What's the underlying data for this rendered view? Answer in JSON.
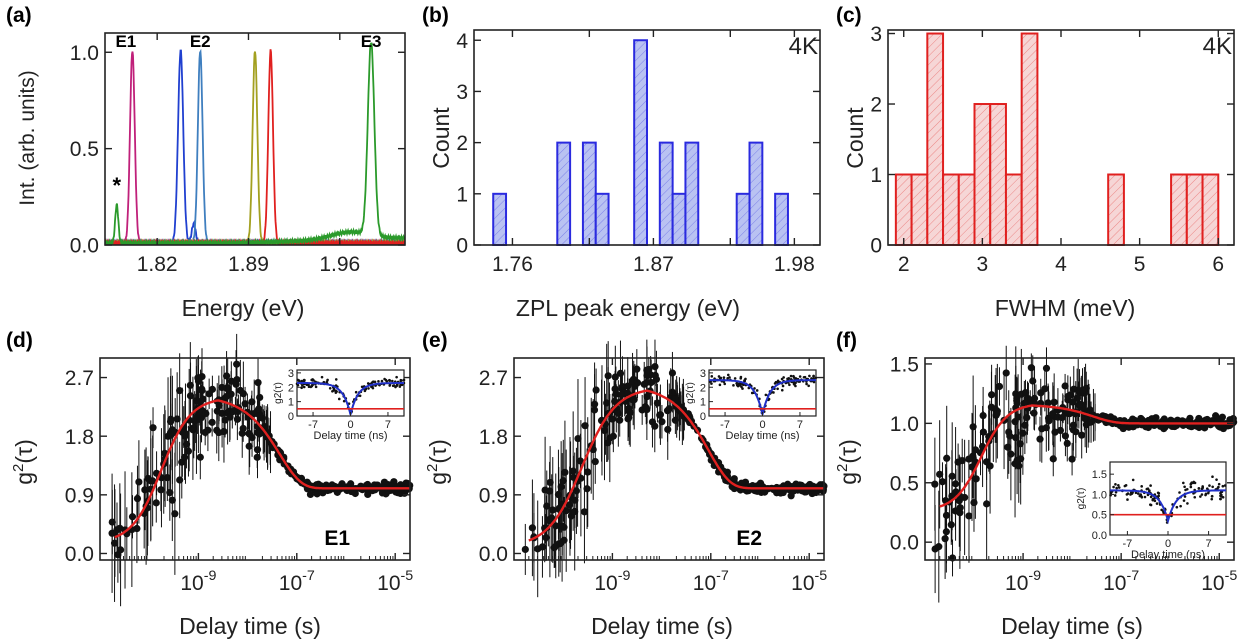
{
  "colors": {
    "axis": "#222222",
    "blue_hist_edge": "#2a2adf",
    "blue_hist_fill": "#b9c2f2",
    "red_hist_edge": "#e0201f",
    "red_hist_fill": "#f6d6d6",
    "fit_red": "#e0201f",
    "fit_blue": "#2030c8",
    "data_black": "#111111"
  },
  "chart_data": [
    {
      "panel": "(a)",
      "type": "line",
      "xlabel": "Energy (eV)",
      "ylabel": "Int. (arb. units)",
      "xlim": [
        1.78,
        2.01
      ],
      "ylim": [
        0,
        1.1
      ],
      "xticks": [
        1.82,
        1.89,
        1.96
      ],
      "xtick_labels": [
        "1.82",
        "1.89",
        "1.96"
      ],
      "yticks": [
        0.0,
        0.5,
        1.0
      ],
      "ytick_labels": [
        "0.0",
        "0.5",
        "1.0"
      ],
      "annotations": [
        "E1",
        "E2",
        "E3",
        "*"
      ],
      "series": [
        {
          "color": "#c0207a",
          "peak_x": 1.801,
          "width": 0.0018,
          "height": 1.0
        },
        {
          "color": "#2040d0",
          "peak_x": 1.838,
          "width": 0.002,
          "height": 1.0,
          "side_x": 1.848,
          "side_h": 0.1
        },
        {
          "color": "#3f7fbf",
          "peak_x": 1.853,
          "width": 0.0018,
          "height": 1.0
        },
        {
          "color": "#a3a020",
          "peak_x": 1.895,
          "width": 0.0018,
          "height": 1.0
        },
        {
          "color": "#e0201f",
          "peak_x": 1.907,
          "width": 0.0018,
          "height": 1.0
        },
        {
          "color": "#2b9a2b",
          "peak_x": 1.984,
          "width": 0.0025,
          "height": 1.0,
          "extra_x": 1.789,
          "extra_h": 0.2
        }
      ]
    },
    {
      "panel": "(b)",
      "type": "bar",
      "xlabel": "ZPL peak energy (eV)",
      "ylabel": "Count",
      "annotation": "4K",
      "xlim": [
        1.73,
        2.0
      ],
      "ylim": [
        0,
        4.2
      ],
      "xticks": [
        1.76,
        1.82,
        1.87,
        1.93,
        1.98
      ],
      "xtick_labels": [
        "1.76",
        "",
        "1.87",
        "",
        "1.98"
      ],
      "yticks": [
        0,
        1,
        2,
        3,
        4
      ],
      "ytick_labels": [
        "0",
        "1",
        "2",
        "3",
        "4"
      ],
      "bins": [
        {
          "x0": 1.745,
          "x1": 1.755,
          "count": 1
        },
        {
          "x0": 1.795,
          "x1": 1.805,
          "count": 2
        },
        {
          "x0": 1.815,
          "x1": 1.825,
          "count": 2
        },
        {
          "x0": 1.825,
          "x1": 1.835,
          "count": 1
        },
        {
          "x0": 1.855,
          "x1": 1.865,
          "count": 4
        },
        {
          "x0": 1.875,
          "x1": 1.885,
          "count": 2
        },
        {
          "x0": 1.885,
          "x1": 1.895,
          "count": 1
        },
        {
          "x0": 1.895,
          "x1": 1.905,
          "count": 2
        },
        {
          "x0": 1.935,
          "x1": 1.945,
          "count": 1
        },
        {
          "x0": 1.945,
          "x1": 1.955,
          "count": 2
        },
        {
          "x0": 1.965,
          "x1": 1.975,
          "count": 1
        }
      ]
    },
    {
      "panel": "(c)",
      "type": "bar",
      "xlabel": "FWHM  (meV)",
      "ylabel": "Count",
      "annotation": "4K",
      "xlim": [
        1.8,
        6.2
      ],
      "ylim": [
        0,
        3.05
      ],
      "xticks": [
        2,
        3,
        4,
        5,
        6
      ],
      "xtick_labels": [
        "2",
        "3",
        "4",
        "5",
        "6"
      ],
      "yticks": [
        0,
        1,
        2,
        3
      ],
      "ytick_labels": [
        "0",
        "1",
        "2",
        "3"
      ],
      "bins": [
        {
          "x0": 1.9,
          "x1": 2.1,
          "count": 1
        },
        {
          "x0": 2.1,
          "x1": 2.3,
          "count": 1
        },
        {
          "x0": 2.3,
          "x1": 2.5,
          "count": 3
        },
        {
          "x0": 2.5,
          "x1": 2.7,
          "count": 1
        },
        {
          "x0": 2.7,
          "x1": 2.9,
          "count": 1
        },
        {
          "x0": 2.9,
          "x1": 3.1,
          "count": 2
        },
        {
          "x0": 3.1,
          "x1": 3.3,
          "count": 2
        },
        {
          "x0": 3.3,
          "x1": 3.5,
          "count": 1
        },
        {
          "x0": 3.5,
          "x1": 3.7,
          "count": 3
        },
        {
          "x0": 4.6,
          "x1": 4.8,
          "count": 1
        },
        {
          "x0": 5.4,
          "x1": 5.6,
          "count": 1
        },
        {
          "x0": 5.6,
          "x1": 5.8,
          "count": 1
        },
        {
          "x0": 5.8,
          "x1": 6.0,
          "count": 1
        }
      ]
    },
    {
      "panel": "(d)",
      "type": "scatter",
      "xlabel": "Delay time (s)",
      "ylabel": "g2(τ)",
      "emitter": "E1",
      "xscale": "log",
      "xlim": [
        1e-11,
        2e-05
      ],
      "ylim": [
        -0.1,
        3.0
      ],
      "xticks": [
        1e-09,
        1e-07,
        1e-05
      ],
      "xtick_labels": [
        "10-9",
        "10-7",
        "10-5"
      ],
      "yticks": [
        0.0,
        0.9,
        1.8,
        2.7
      ],
      "ytick_labels": [
        "0.0",
        "0.9",
        "1.8",
        "2.7"
      ],
      "fit": {
        "baseline": 1.0,
        "bunching_peak": 2.35,
        "peak_time": 2.5e-09,
        "rise_start": 2e-11,
        "start_value": 0.25
      },
      "inset": {
        "xlabel": "Delay time (ns)",
        "ylabel": "g2(τ)",
        "xticks": [
          -7,
          0,
          7
        ],
        "xtick_labels": [
          "-7",
          "0",
          "7"
        ],
        "yticks": [
          0,
          1,
          2,
          3
        ],
        "ytick_labels": [
          "0",
          "1",
          "2",
          "3"
        ],
        "ylim": [
          0,
          3.2
        ],
        "baseline": 2.3,
        "dip_min": 0.1,
        "threshold": 0.5
      }
    },
    {
      "panel": "(e)",
      "type": "scatter",
      "xlabel": "Delay time (s)",
      "ylabel": "g2(τ)",
      "emitter": "E2",
      "xscale": "log",
      "xlim": [
        1e-11,
        2e-05
      ],
      "ylim": [
        -0.1,
        3.0
      ],
      "xticks": [
        1e-09,
        1e-07,
        1e-05
      ],
      "xtick_labels": [
        "10-9",
        "10-7",
        "10-5"
      ],
      "yticks": [
        0.0,
        0.9,
        1.8,
        2.7
      ],
      "ytick_labels": [
        "0.0",
        "0.9",
        "1.8",
        "2.7"
      ],
      "fit": {
        "baseline": 1.0,
        "bunching_peak": 2.5,
        "peak_time": 5e-09,
        "rise_start": 2e-11,
        "start_value": 0.2
      },
      "inset": {
        "xlabel": "Delay time (ns)",
        "ylabel": "g2(τ)",
        "xticks": [
          -7,
          0,
          7
        ],
        "xtick_labels": [
          "-7",
          "0",
          "7"
        ],
        "yticks": [
          0,
          1,
          2,
          3
        ],
        "ytick_labels": [
          "0",
          "1",
          "2",
          "3"
        ],
        "ylim": [
          0,
          3.2
        ],
        "baseline": 2.5,
        "dip_min": 0.1,
        "threshold": 0.5
      }
    },
    {
      "panel": "(f)",
      "type": "scatter",
      "xlabel": "Delay time (s)",
      "ylabel": "g2(τ)",
      "emitter": "",
      "xscale": "log",
      "xlim": [
        1e-11,
        2e-05
      ],
      "ylim": [
        -0.15,
        1.55
      ],
      "xticks": [
        1e-09,
        1e-07,
        1e-05
      ],
      "xtick_labels": [
        "10-9",
        "10-7",
        "10-5"
      ],
      "yticks": [
        0.0,
        0.5,
        1.0,
        1.5
      ],
      "ytick_labels": [
        "0.0",
        "0.5",
        "1.0",
        "1.5"
      ],
      "fit": {
        "baseline": 1.0,
        "bunching_peak": 1.15,
        "peak_time": 1.5e-09,
        "rise_start": 2e-11,
        "start_value": 0.3
      },
      "inset": {
        "xlabel": "Delay time (ns)",
        "ylabel": "g2(τ)",
        "xticks": [
          -7,
          0,
          7
        ],
        "xtick_labels": [
          "-7",
          "0",
          "7"
        ],
        "yticks": [
          0.0,
          0.5,
          1.0,
          1.5
        ],
        "ytick_labels": [
          "0.0",
          "0.5",
          "1.0",
          "1.5"
        ],
        "ylim": [
          0,
          1.8
        ],
        "baseline": 1.1,
        "dip_min": 0.35,
        "threshold": 0.5
      }
    }
  ]
}
